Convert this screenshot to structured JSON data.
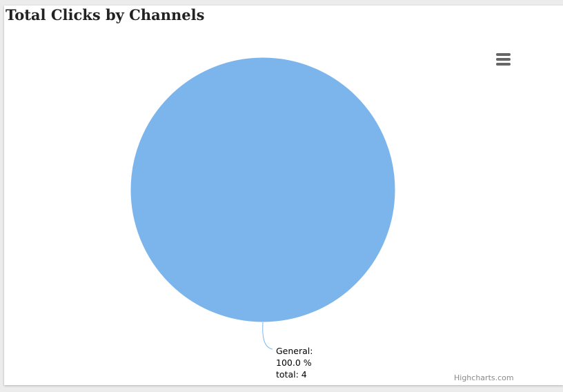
{
  "chart_data": {
    "type": "pie",
    "title": "Total Clicks by Channels",
    "slices": [
      {
        "name": "General",
        "value": 4,
        "percent": 100.0,
        "color": "#7cb5ec",
        "label_name": "General:",
        "label_percent": "100.0 %",
        "label_total": "total: 4"
      }
    ]
  },
  "export_menu": {
    "icon": "hamburger-menu-icon"
  },
  "credits": {
    "text": "Highcharts.com"
  }
}
